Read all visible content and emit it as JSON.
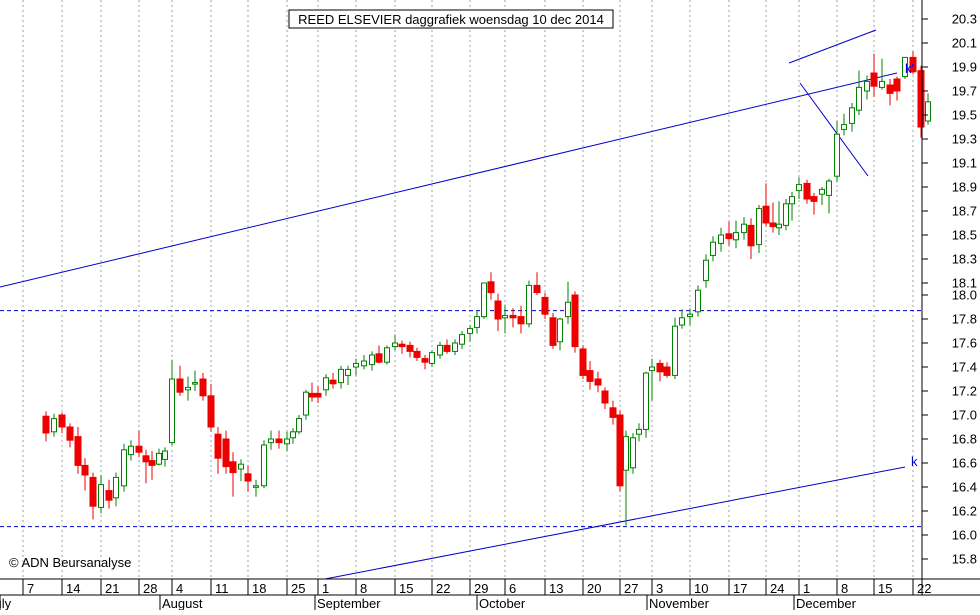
{
  "title": "REED ELSEVIER daggrafiek woensdag 10 dec 2014",
  "copyright": "© ADN Beursanalyse",
  "colors": {
    "up": "#008000",
    "down": "#ee0000",
    "trendline": "#0000cc",
    "grid": "#a0a0a0",
    "axis": "#000000",
    "background": "#ffffff"
  },
  "chart_data": {
    "type": "candlestick",
    "title": "REED ELSEVIER daggrafiek woensdag 10 dec 2014",
    "ylim": [
      15.7,
      20.4
    ],
    "y_ticks": [
      20.3,
      20.1,
      19.9,
      19.7,
      19.5,
      19.3,
      19.1,
      18.9,
      18.7,
      18.5,
      18.3,
      18.1,
      18.0,
      17.8,
      17.6,
      17.4,
      17.2,
      17.0,
      16.8,
      16.6,
      16.4,
      16.2,
      16.0,
      15.8
    ],
    "x_ticks": [
      "7",
      "14",
      "21",
      "28",
      "4",
      "11",
      "18",
      "25",
      "1",
      "8",
      "15",
      "22",
      "29",
      "6",
      "13",
      "20",
      "27",
      "3",
      "10",
      "17",
      "24",
      "1",
      "8",
      "15",
      "22"
    ],
    "months": [
      "July",
      "August",
      "September",
      "October",
      "November",
      "December"
    ],
    "grid": true,
    "horizontal_levels": [
      17.87,
      16.07
    ],
    "trendline_labels": [
      "k'",
      "k"
    ],
    "candles": [
      {
        "o": 16.99,
        "h": 17.03,
        "l": 16.78,
        "c": 16.85
      },
      {
        "o": 16.86,
        "h": 17.01,
        "l": 16.82,
        "c": 16.97
      },
      {
        "o": 17.0,
        "h": 17.02,
        "l": 16.85,
        "c": 16.9
      },
      {
        "o": 16.9,
        "h": 16.93,
        "l": 16.73,
        "c": 16.79
      },
      {
        "o": 16.82,
        "h": 16.9,
        "l": 16.51,
        "c": 16.58
      },
      {
        "o": 16.58,
        "h": 16.64,
        "l": 16.37,
        "c": 16.5
      },
      {
        "o": 16.48,
        "h": 16.52,
        "l": 16.13,
        "c": 16.24
      },
      {
        "o": 16.23,
        "h": 16.5,
        "l": 16.18,
        "c": 16.42
      },
      {
        "o": 16.37,
        "h": 16.46,
        "l": 16.22,
        "c": 16.29
      },
      {
        "o": 16.31,
        "h": 16.52,
        "l": 16.24,
        "c": 16.48
      },
      {
        "o": 16.41,
        "h": 16.76,
        "l": 16.36,
        "c": 16.71
      },
      {
        "o": 16.67,
        "h": 16.79,
        "l": 16.62,
        "c": 16.74
      },
      {
        "o": 16.74,
        "h": 16.87,
        "l": 16.65,
        "c": 16.69
      },
      {
        "o": 16.66,
        "h": 16.71,
        "l": 16.43,
        "c": 16.61
      },
      {
        "o": 16.62,
        "h": 16.7,
        "l": 16.46,
        "c": 16.58
      },
      {
        "o": 16.59,
        "h": 16.72,
        "l": 16.58,
        "c": 16.68
      },
      {
        "o": 16.63,
        "h": 16.73,
        "l": 16.57,
        "c": 16.7
      },
      {
        "o": 16.77,
        "h": 17.46,
        "l": 16.75,
        "c": 17.3
      },
      {
        "o": 17.3,
        "h": 17.41,
        "l": 17.16,
        "c": 17.19
      },
      {
        "o": 17.21,
        "h": 17.32,
        "l": 17.12,
        "c": 17.23
      },
      {
        "o": 17.26,
        "h": 17.37,
        "l": 17.2,
        "c": 17.27
      },
      {
        "o": 17.3,
        "h": 17.35,
        "l": 17.12,
        "c": 17.16
      },
      {
        "o": 17.16,
        "h": 17.26,
        "l": 16.86,
        "c": 16.9
      },
      {
        "o": 16.84,
        "h": 16.9,
        "l": 16.51,
        "c": 16.64
      },
      {
        "o": 16.8,
        "h": 16.87,
        "l": 16.51,
        "c": 16.57
      },
      {
        "o": 16.61,
        "h": 16.69,
        "l": 16.32,
        "c": 16.52
      },
      {
        "o": 16.55,
        "h": 16.63,
        "l": 16.45,
        "c": 16.59
      },
      {
        "o": 16.51,
        "h": 16.58,
        "l": 16.36,
        "c": 16.45
      },
      {
        "o": 16.4,
        "h": 16.46,
        "l": 16.32,
        "c": 16.41
      },
      {
        "o": 16.41,
        "h": 16.79,
        "l": 16.39,
        "c": 16.75
      },
      {
        "o": 16.77,
        "h": 16.87,
        "l": 16.71,
        "c": 16.8
      },
      {
        "o": 16.8,
        "h": 16.87,
        "l": 16.72,
        "c": 16.77
      },
      {
        "o": 16.76,
        "h": 16.86,
        "l": 16.7,
        "c": 16.8
      },
      {
        "o": 16.81,
        "h": 16.89,
        "l": 16.76,
        "c": 16.86
      },
      {
        "o": 16.86,
        "h": 17.0,
        "l": 16.84,
        "c": 16.97
      },
      {
        "o": 17.0,
        "h": 17.21,
        "l": 16.96,
        "c": 17.19
      },
      {
        "o": 17.18,
        "h": 17.27,
        "l": 17.11,
        "c": 17.15
      },
      {
        "o": 17.18,
        "h": 17.24,
        "l": 17.1,
        "c": 17.15
      },
      {
        "o": 17.21,
        "h": 17.34,
        "l": 17.16,
        "c": 17.31
      },
      {
        "o": 17.29,
        "h": 17.35,
        "l": 17.22,
        "c": 17.26
      },
      {
        "o": 17.27,
        "h": 17.41,
        "l": 17.22,
        "c": 17.38
      },
      {
        "o": 17.33,
        "h": 17.41,
        "l": 17.25,
        "c": 17.38
      },
      {
        "o": 17.4,
        "h": 17.47,
        "l": 17.33,
        "c": 17.43
      },
      {
        "o": 17.41,
        "h": 17.5,
        "l": 17.38,
        "c": 17.45
      },
      {
        "o": 17.42,
        "h": 17.53,
        "l": 17.37,
        "c": 17.5
      },
      {
        "o": 17.51,
        "h": 17.58,
        "l": 17.43,
        "c": 17.44
      },
      {
        "o": 17.44,
        "h": 17.58,
        "l": 17.42,
        "c": 17.56
      },
      {
        "o": 17.57,
        "h": 17.67,
        "l": 17.54,
        "c": 17.6
      },
      {
        "o": 17.59,
        "h": 17.62,
        "l": 17.51,
        "c": 17.57
      },
      {
        "o": 17.58,
        "h": 17.61,
        "l": 17.48,
        "c": 17.53
      },
      {
        "o": 17.53,
        "h": 17.56,
        "l": 17.45,
        "c": 17.48
      },
      {
        "o": 17.47,
        "h": 17.5,
        "l": 17.38,
        "c": 17.44
      },
      {
        "o": 17.43,
        "h": 17.54,
        "l": 17.4,
        "c": 17.52
      },
      {
        "o": 17.5,
        "h": 17.61,
        "l": 17.47,
        "c": 17.58
      },
      {
        "o": 17.58,
        "h": 17.63,
        "l": 17.51,
        "c": 17.53
      },
      {
        "o": 17.53,
        "h": 17.63,
        "l": 17.5,
        "c": 17.6
      },
      {
        "o": 17.59,
        "h": 17.7,
        "l": 17.55,
        "c": 17.67
      },
      {
        "o": 17.68,
        "h": 17.75,
        "l": 17.61,
        "c": 17.72
      },
      {
        "o": 17.73,
        "h": 17.87,
        "l": 17.68,
        "c": 17.82
      },
      {
        "o": 17.82,
        "h": 18.06,
        "l": 17.8,
        "c": 18.1
      },
      {
        "o": 18.11,
        "h": 18.19,
        "l": 17.96,
        "c": 18.02
      },
      {
        "o": 17.95,
        "h": 18.01,
        "l": 17.7,
        "c": 17.8
      },
      {
        "o": 17.81,
        "h": 17.92,
        "l": 17.68,
        "c": 17.83
      },
      {
        "o": 17.83,
        "h": 17.89,
        "l": 17.73,
        "c": 17.81
      },
      {
        "o": 17.82,
        "h": 17.91,
        "l": 17.68,
        "c": 17.76
      },
      {
        "o": 17.76,
        "h": 18.12,
        "l": 17.73,
        "c": 18.08
      },
      {
        "o": 18.08,
        "h": 18.19,
        "l": 18.0,
        "c": 18.02
      },
      {
        "o": 17.98,
        "h": 18.02,
        "l": 17.8,
        "c": 17.84
      },
      {
        "o": 17.81,
        "h": 17.85,
        "l": 17.55,
        "c": 17.58
      },
      {
        "o": 17.61,
        "h": 17.81,
        "l": 17.54,
        "c": 17.8
      },
      {
        "o": 17.82,
        "h": 18.11,
        "l": 17.76,
        "c": 17.94
      },
      {
        "o": 18.0,
        "h": 18.03,
        "l": 17.52,
        "c": 17.57
      },
      {
        "o": 17.55,
        "h": 17.58,
        "l": 17.3,
        "c": 17.33
      },
      {
        "o": 17.37,
        "h": 17.45,
        "l": 17.21,
        "c": 17.28
      },
      {
        "o": 17.3,
        "h": 17.36,
        "l": 17.19,
        "c": 17.25
      },
      {
        "o": 17.2,
        "h": 17.23,
        "l": 17.05,
        "c": 17.1
      },
      {
        "o": 17.06,
        "h": 17.12,
        "l": 16.92,
        "c": 16.98
      },
      {
        "o": 17.0,
        "h": 17.04,
        "l": 16.36,
        "c": 16.41
      },
      {
        "o": 16.54,
        "h": 16.87,
        "l": 16.08,
        "c": 16.82
      },
      {
        "o": 16.56,
        "h": 16.85,
        "l": 16.51,
        "c": 16.81
      },
      {
        "o": 16.84,
        "h": 16.93,
        "l": 16.78,
        "c": 16.88
      },
      {
        "o": 16.88,
        "h": 17.36,
        "l": 16.81,
        "c": 17.35
      },
      {
        "o": 17.37,
        "h": 17.47,
        "l": 17.12,
        "c": 17.4
      },
      {
        "o": 17.43,
        "h": 17.46,
        "l": 17.28,
        "c": 17.36
      },
      {
        "o": 17.4,
        "h": 17.44,
        "l": 17.31,
        "c": 17.33
      },
      {
        "o": 17.33,
        "h": 17.81,
        "l": 17.3,
        "c": 17.74
      },
      {
        "o": 17.75,
        "h": 17.88,
        "l": 17.72,
        "c": 17.81
      },
      {
        "o": 17.82,
        "h": 17.89,
        "l": 17.75,
        "c": 17.84
      },
      {
        "o": 17.86,
        "h": 18.08,
        "l": 17.82,
        "c": 18.04
      },
      {
        "o": 18.12,
        "h": 18.34,
        "l": 18.06,
        "c": 18.29
      },
      {
        "o": 18.33,
        "h": 18.49,
        "l": 18.28,
        "c": 18.44
      },
      {
        "o": 18.43,
        "h": 18.56,
        "l": 18.36,
        "c": 18.5
      },
      {
        "o": 18.51,
        "h": 18.61,
        "l": 18.41,
        "c": 18.47
      },
      {
        "o": 18.46,
        "h": 18.62,
        "l": 18.39,
        "c": 18.52
      },
      {
        "o": 18.52,
        "h": 18.65,
        "l": 18.46,
        "c": 18.59
      },
      {
        "o": 18.58,
        "h": 18.64,
        "l": 18.3,
        "c": 18.41
      },
      {
        "o": 18.42,
        "h": 18.75,
        "l": 18.35,
        "c": 18.72
      },
      {
        "o": 18.74,
        "h": 18.93,
        "l": 18.57,
        "c": 18.6
      },
      {
        "o": 18.6,
        "h": 18.77,
        "l": 18.52,
        "c": 18.57
      },
      {
        "o": 18.56,
        "h": 18.78,
        "l": 18.5,
        "c": 18.59
      },
      {
        "o": 18.58,
        "h": 18.8,
        "l": 18.54,
        "c": 18.76
      },
      {
        "o": 18.76,
        "h": 18.86,
        "l": 18.62,
        "c": 18.82
      },
      {
        "o": 18.87,
        "h": 18.98,
        "l": 18.8,
        "c": 18.92
      },
      {
        "o": 18.93,
        "h": 18.96,
        "l": 18.76,
        "c": 18.8
      },
      {
        "o": 18.82,
        "h": 18.85,
        "l": 18.67,
        "c": 18.78
      },
      {
        "o": 18.84,
        "h": 18.9,
        "l": 18.75,
        "c": 18.88
      },
      {
        "o": 18.83,
        "h": 18.97,
        "l": 18.68,
        "c": 18.95
      },
      {
        "o": 18.99,
        "h": 19.45,
        "l": 18.94,
        "c": 19.34
      },
      {
        "o": 19.38,
        "h": 19.51,
        "l": 19.33,
        "c": 19.42
      },
      {
        "o": 19.43,
        "h": 19.6,
        "l": 19.36,
        "c": 19.56
      },
      {
        "o": 19.54,
        "h": 19.87,
        "l": 19.5,
        "c": 19.73
      },
      {
        "o": 19.7,
        "h": 19.83,
        "l": 19.63,
        "c": 19.78
      },
      {
        "o": 19.85,
        "h": 20.01,
        "l": 19.65,
        "c": 19.74
      },
      {
        "o": 19.73,
        "h": 19.97,
        "l": 19.71,
        "c": 19.78
      },
      {
        "o": 19.75,
        "h": 19.8,
        "l": 19.58,
        "c": 19.68
      },
      {
        "o": 19.8,
        "h": 19.82,
        "l": 19.62,
        "c": 19.7
      },
      {
        "o": 19.82,
        "h": 19.97,
        "l": 19.8,
        "c": 19.98
      },
      {
        "o": 19.98,
        "h": 20.03,
        "l": 19.84,
        "c": 19.86
      },
      {
        "o": 19.87,
        "h": 19.91,
        "l": 19.31,
        "c": 19.4
      },
      {
        "o": 19.45,
        "h": 19.68,
        "l": 19.42,
        "c": 19.61
      }
    ]
  }
}
